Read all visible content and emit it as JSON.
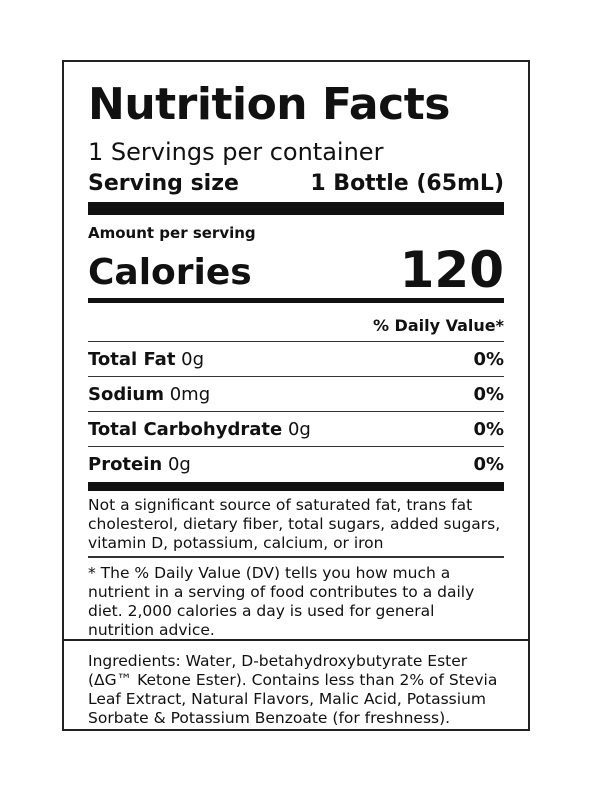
{
  "title": "Nutrition Facts",
  "servings_per_container": "1 Servings per container",
  "serving_size": {
    "label": "Serving size",
    "value": "1 Bottle (65mL)"
  },
  "amount_per_serving": "Amount per serving",
  "calories": {
    "label": "Calories",
    "value": "120"
  },
  "daily_value_header": "% Daily Value*",
  "nutrients": [
    {
      "name": "Total Fat",
      "amount": "0g",
      "dv": "0%"
    },
    {
      "name": "Sodium",
      "amount": "0mg",
      "dv": "0%"
    },
    {
      "name": "Total Carbohydrate",
      "amount": "0g",
      "dv": "0%"
    },
    {
      "name": "Protein",
      "amount": "0g",
      "dv": "0%"
    }
  ],
  "not_significant": "Not a significant source of saturated fat, trans fat cholesterol, dietary fiber, total sugars, added sugars, vitamin D, potassium, calcium, or iron",
  "footnote": "* The % Daily Value (DV) tells you how much a nutrient in a serving of food contributes to a daily diet. 2,000 calories a day is used for general nutrition advice.",
  "ingredients": "Ingredients: Water, D-betahydroxybutyrate Ester (ΔG™ Ketone Ester). Contains less than 2% of Stevia Leaf Extract, Natural Flavors, Malic Acid, Potassium Sorbate & Potassium Benzoate (for freshness)."
}
